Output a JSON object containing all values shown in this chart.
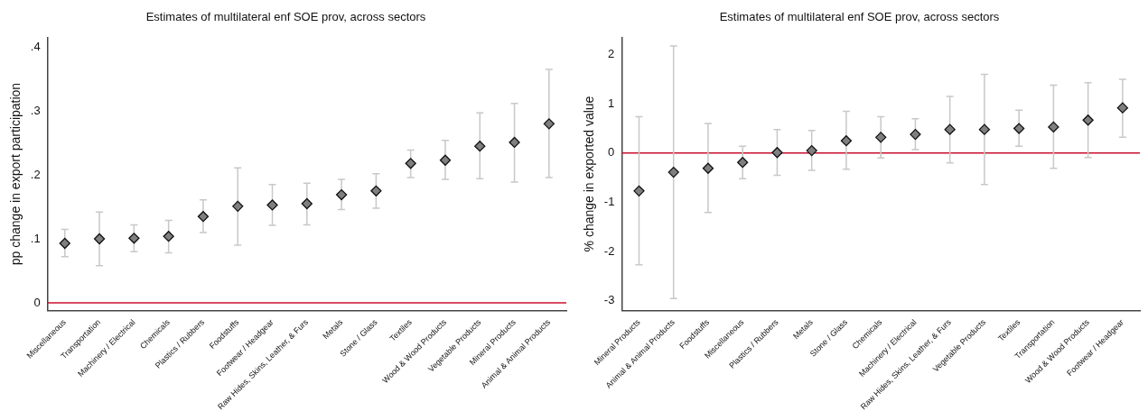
{
  "chart_data": [
    {
      "type": "scatter",
      "title": "Estimates of multilateral enf SOE prov, across sectors",
      "ylabel": "pp change in export participation",
      "categories": [
        "Miscellaneous",
        "Transportation",
        "Machinery / Electrical",
        "Chemicals",
        "Plastics / Rubbers",
        "Foodstuffs",
        "Footwear / Headgear",
        "Raw Hides, Skins, Leather, & Furs",
        "Metals",
        "Stone / Glass",
        "Textiles",
        "Wood & Wood Products",
        "Vegetable Products",
        "Mineral Products",
        "Animal & Animal Products"
      ],
      "series": [
        {
          "color": "#7f7f7f",
          "values": [
            0.093,
            0.1,
            0.101,
            0.104,
            0.135,
            0.151,
            0.153,
            0.155,
            0.169,
            0.175,
            0.218,
            0.223,
            0.245,
            0.251,
            0.28
          ],
          "errors": [
            [
              0.072,
              0.115
            ],
            [
              0.058,
              0.142
            ],
            [
              0.08,
              0.122
            ],
            [
              0.078,
              0.129
            ],
            [
              0.11,
              0.161
            ],
            [
              0.09,
              0.211
            ],
            [
              0.121,
              0.185
            ],
            [
              0.122,
              0.187
            ],
            [
              0.146,
              0.193
            ],
            [
              0.148,
              0.202
            ],
            [
              0.196,
              0.239
            ],
            [
              0.193,
              0.254
            ],
            [
              0.194,
              0.297
            ],
            [
              0.189,
              0.312
            ],
            [
              0.196,
              0.365
            ]
          ]
        }
      ],
      "ylim": [
        -0.012,
        0.415
      ],
      "yticks": [
        {
          "value": 0,
          "label": "0"
        },
        {
          "value": 0.1,
          "label": ".1"
        },
        {
          "value": 0.2,
          "label": ".2"
        },
        {
          "value": 0.3,
          "label": ".3"
        },
        {
          "value": 0.4,
          "label": ".4"
        }
      ],
      "ref_lines": [
        {
          "axis": "y",
          "value": 0,
          "color": "#c8102e"
        }
      ],
      "grid": false,
      "legend": false,
      "marker": "diamond"
    },
    {
      "type": "scatter",
      "title": "Estimates of multilateral enf SOE prov, across sectors",
      "ylabel": "% change in exported value",
      "categories": [
        "Mineral Products",
        "Animal & Animal Products",
        "Foodstuffs",
        "Miscellaneous",
        "Plastics / Rubbers",
        "Metals",
        "Stone / Glass",
        "Chemicals",
        "Machinery / Electrical",
        "Raw Hides, Skins, Leather, & Furs",
        "Vegetable Products",
        "Textiles",
        "Transportation",
        "Wood & Wood Products",
        "Footwear / Headgear"
      ],
      "series": [
        {
          "color": "#7f7f7f",
          "values": [
            -0.77,
            -0.39,
            -0.31,
            -0.19,
            0.01,
            0.05,
            0.25,
            0.32,
            0.38,
            0.48,
            0.48,
            0.5,
            0.53,
            0.67,
            0.92
          ],
          "errors": [
            [
              -2.27,
              0.74
            ],
            [
              -2.96,
              2.18
            ],
            [
              -1.21,
              0.6
            ],
            [
              -0.52,
              0.14
            ],
            [
              -0.45,
              0.48
            ],
            [
              -0.35,
              0.46
            ],
            [
              -0.33,
              0.85
            ],
            [
              -0.1,
              0.74
            ],
            [
              0.07,
              0.7
            ],
            [
              -0.2,
              1.15
            ],
            [
              -0.64,
              1.6
            ],
            [
              0.14,
              0.87
            ],
            [
              -0.31,
              1.38
            ],
            [
              -0.09,
              1.43
            ],
            [
              0.32,
              1.5
            ]
          ]
        }
      ],
      "ylim": [
        -3.2,
        2.35
      ],
      "yticks": [
        -3,
        -2,
        -1,
        0,
        1,
        2
      ],
      "ref_lines": [
        {
          "axis": "y",
          "value": 0,
          "color": "#c8102e"
        }
      ],
      "grid": false,
      "legend": false,
      "marker": "diamond"
    }
  ]
}
